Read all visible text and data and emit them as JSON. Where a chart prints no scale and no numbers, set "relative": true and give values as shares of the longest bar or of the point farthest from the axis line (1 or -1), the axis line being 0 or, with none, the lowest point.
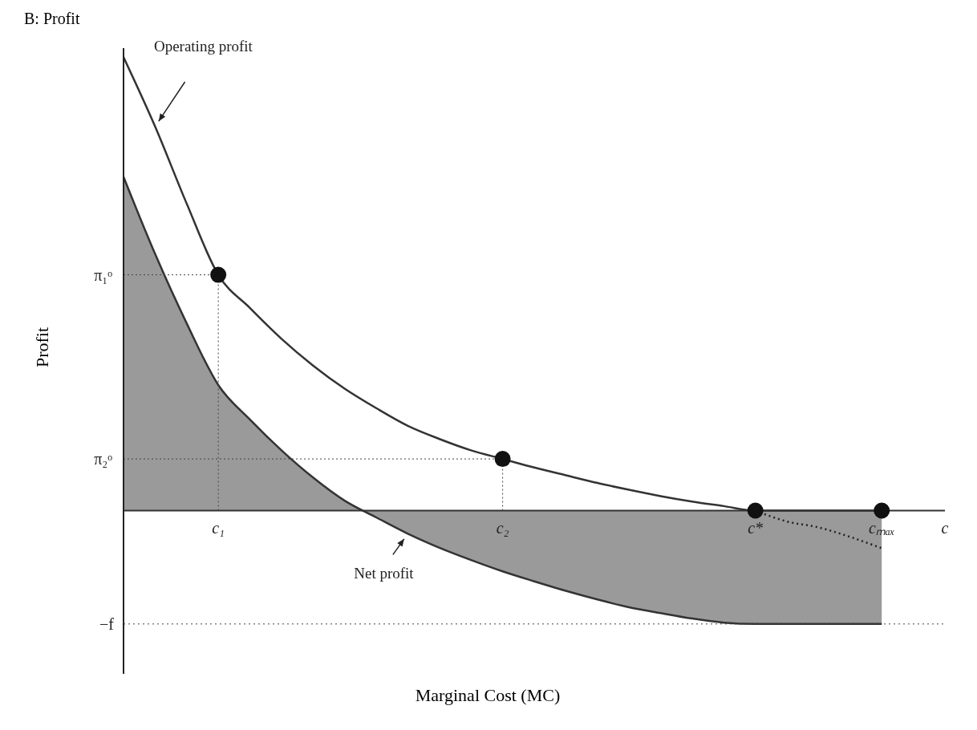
{
  "chart_data": {
    "type": "line",
    "title": "B: Profit",
    "xlabel": "Marginal Cost (MC)",
    "ylabel": "Profit",
    "relative": true,
    "categories": [
      null,
      null,
      null,
      "c₁",
      null,
      null,
      null,
      null,
      null,
      null,
      null,
      null,
      "c₂",
      null,
      null,
      null,
      null,
      null,
      null,
      null,
      "c*",
      null,
      null,
      null,
      "cₘₐₓ",
      null,
      "c"
    ],
    "series": [
      {
        "name": "Operating profit",
        "color": "#333333",
        "values": [
          1.0,
          0.847,
          0.677,
          0.52,
          0.447,
          0.379,
          0.32,
          0.269,
          0.226,
          0.187,
          0.158,
          0.133,
          0.114,
          0.095,
          0.078,
          0.061,
          0.046,
          0.032,
          0.02,
          0.01,
          0,
          0,
          0,
          0,
          0,
          null,
          null
        ]
      },
      {
        "name": "Net profit",
        "type": "area",
        "color": "#9a9a9a",
        "values": [
          0.736,
          0.566,
          0.413,
          0.277,
          0.201,
          0.133,
          0.073,
          0.022,
          -0.015,
          -0.051,
          -0.082,
          -0.109,
          -0.134,
          -0.156,
          -0.177,
          -0.196,
          -0.213,
          -0.226,
          -0.238,
          -0.247,
          -0.25,
          -0.25,
          -0.25,
          -0.25,
          -0.25,
          null,
          null
        ]
      },
      {
        "type": "line",
        "line_style": "dotted",
        "color": "#222222",
        "values": [
          null,
          null,
          null,
          null,
          null,
          null,
          null,
          null,
          null,
          null,
          null,
          null,
          null,
          null,
          null,
          null,
          null,
          null,
          null,
          null,
          0,
          -0.024,
          -0.037,
          -0.058,
          -0.083,
          null,
          null
        ]
      },
      {
        "type": "scatter",
        "marker": "circle",
        "color": "#111111",
        "values": [
          null,
          null,
          null,
          0.52,
          null,
          null,
          null,
          null,
          null,
          null,
          null,
          null,
          0.114,
          null,
          null,
          null,
          null,
          null,
          null,
          null,
          0,
          null,
          null,
          null,
          0,
          null,
          null
        ]
      }
    ],
    "annotations": [
      {
        "text": "π₁ᵒ",
        "x": "c₁",
        "y": 0.52
      },
      {
        "text": "π₂ᵒ",
        "x": "c₂",
        "y": 0.114
      }
    ],
    "ref_lines": [
      {
        "axis": "y",
        "value": -0.25,
        "label": "−f",
        "line_style": "dotted"
      }
    ]
  }
}
